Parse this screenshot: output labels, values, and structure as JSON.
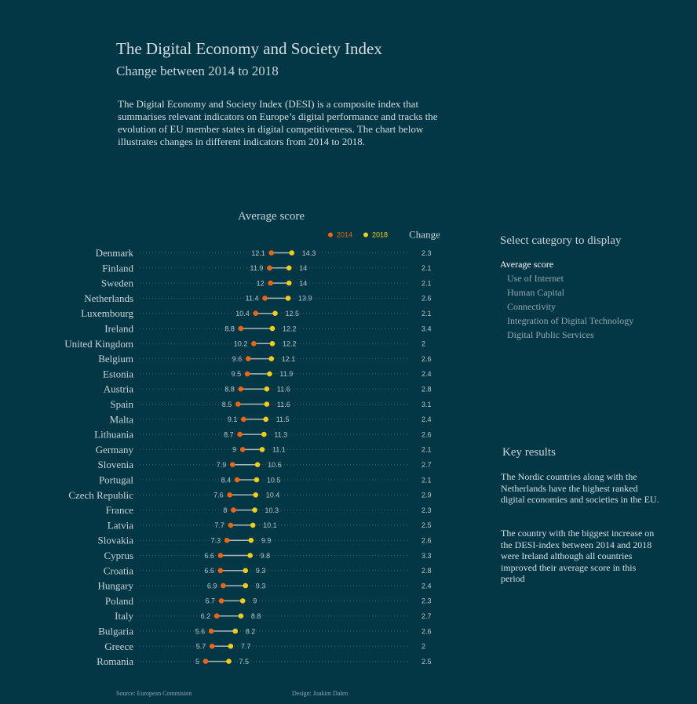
{
  "header": {
    "title": "The Digital Economy and Society Index",
    "subtitle": "Change between 2014 to 2018",
    "intro": "The Digital Economy and Society Index (DESI) is a composite index that summarises relevant indicators on Europe’s digital performance and tracks the evolution of EU member states in digital competitiveness. The chart below illustrates changes in different indicators from 2014 to 2018."
  },
  "colors": {
    "background": "#043745",
    "series_2014": "#f0640f",
    "series_2018": "#f3cc13",
    "connector": "#a8b8bd"
  },
  "chart_data": {
    "type": "dot-plot",
    "title": "Average score",
    "change_header": "Change",
    "legend": {
      "placement": "top-right"
    },
    "categories": [
      "Denmark",
      "Finland",
      "Sweden",
      "Netherlands",
      "Luxembourg",
      "Ireland",
      "United Kingdom",
      "Belgium",
      "Estonia",
      "Austria",
      "Spain",
      "Malta",
      "Lithuania",
      "Germany",
      "Slovenia",
      "Portugal",
      "Czech Republic",
      "France",
      "Latvia",
      "Slovakia",
      "Cyprus",
      "Croatia",
      "Hungary",
      "Poland",
      "Italy",
      "Bulgaria",
      "Greece",
      "Romania"
    ],
    "series": [
      {
        "name": "2014",
        "values": [
          12.1,
          11.9,
          12,
          11.4,
          10.4,
          8.8,
          10.2,
          9.6,
          9.5,
          8.8,
          8.5,
          9.1,
          8.7,
          9,
          7.9,
          8.4,
          7.6,
          8,
          7.7,
          7.3,
          6.6,
          6.6,
          6.9,
          6.7,
          6.2,
          5.6,
          5.7,
          5
        ]
      },
      {
        "name": "2018",
        "values": [
          14.3,
          14,
          14,
          13.9,
          12.5,
          12.2,
          12.2,
          12.1,
          11.9,
          11.6,
          11.6,
          11.5,
          11.3,
          11.1,
          10.6,
          10.5,
          10.4,
          10.3,
          10.1,
          9.9,
          9.8,
          9.3,
          9.3,
          9,
          8.8,
          8.2,
          7.7,
          7.5
        ]
      }
    ],
    "change": [
      2.3,
      2.1,
      2.1,
      2.6,
      2.1,
      3.4,
      2,
      2.6,
      2.4,
      2.8,
      3.1,
      2.4,
      2.6,
      2.1,
      2.7,
      2.1,
      2.9,
      2.3,
      2.5,
      2.6,
      3.3,
      2.8,
      2.4,
      2.3,
      2.7,
      2.6,
      2,
      2.5
    ]
  },
  "sidebar": {
    "select_title": "Select category to display",
    "categories": [
      {
        "label": "Average score",
        "active": true
      },
      {
        "label": "Use of Internet",
        "active": false
      },
      {
        "label": "Human Capital",
        "active": false
      },
      {
        "label": "Connectivity",
        "active": false
      },
      {
        "label": "Integration of Digital Technology",
        "active": false
      },
      {
        "label": "Digital Public Services",
        "active": false
      }
    ],
    "key_title": "Key results",
    "key_results": [
      "The Nordic countries along with the Netherlands have the highest ranked digital economies and societies in the EU.",
      "The country with the biggest increase on the DESI-index between 2014 and 2018 were Ireland although all countries improved their average score in this period"
    ]
  },
  "footer": {
    "source": "Source: European Commision",
    "design": "Design: Joakim Dalen"
  }
}
